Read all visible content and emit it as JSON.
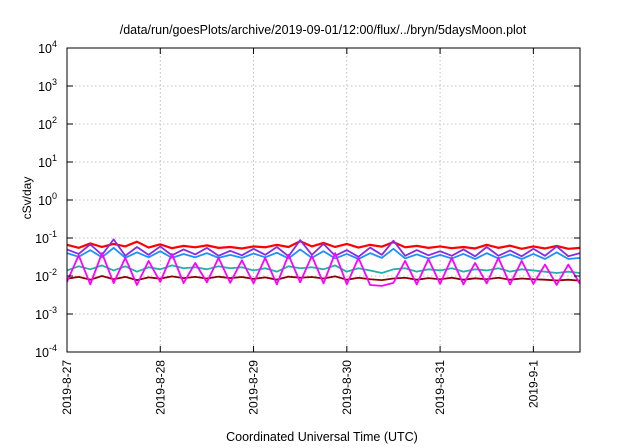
{
  "chart_data": {
    "type": "line",
    "title": "/data/run/goesPlots/archive/2019-09-01/12:00/flux/../bryn/5daysMoon.plot",
    "xlabel": "Coordinated Universal Time (UTC)",
    "ylabel": "cSv/day",
    "yscale": "log",
    "ylim": [
      0.0001,
      10000
    ],
    "xlim": [
      "2019-08-27T00:00",
      "2019-09-01T12:00"
    ],
    "grid": true,
    "legend": "none",
    "x_ticks": [
      {
        "label": "2019-8-27",
        "date": "2019-08-27T00:00"
      },
      {
        "label": "2019-8-28",
        "date": "2019-08-28T00:00"
      },
      {
        "label": "2019-8-29",
        "date": "2019-08-29T00:00"
      },
      {
        "label": "2019-8-30",
        "date": "2019-08-30T00:00"
      },
      {
        "label": "2019-8-31",
        "date": "2019-08-31T00:00"
      },
      {
        "label": "2019-9-1",
        "date": "2019-09-01T00:00"
      }
    ],
    "y_ticks": [
      {
        "base": "10",
        "exp": "-4",
        "value": 0.0001
      },
      {
        "base": "10",
        "exp": "-3",
        "value": 0.001
      },
      {
        "base": "10",
        "exp": "-2",
        "value": 0.01
      },
      {
        "base": "10",
        "exp": "-1",
        "value": 0.1
      },
      {
        "base": "10",
        "exp": "0",
        "value": 1
      },
      {
        "base": "10",
        "exp": "1",
        "value": 10
      },
      {
        "base": "10",
        "exp": "2",
        "value": 100
      },
      {
        "base": "10",
        "exp": "3",
        "value": 1000
      },
      {
        "base": "10",
        "exp": "4",
        "value": 10000
      }
    ],
    "series": [
      {
        "color": "#ff0000",
        "x": [
          "2019-08-27T00:00",
          "2019-08-27T03:00",
          "2019-08-27T06:00",
          "2019-08-27T09:00",
          "2019-08-27T12:00",
          "2019-08-27T15:00",
          "2019-08-27T18:00",
          "2019-08-27T21:00",
          "2019-08-28T00:00",
          "2019-08-28T03:00",
          "2019-08-28T06:00",
          "2019-08-28T09:00",
          "2019-08-28T12:00",
          "2019-08-28T15:00",
          "2019-08-28T18:00",
          "2019-08-28T21:00",
          "2019-08-29T00:00",
          "2019-08-29T03:00",
          "2019-08-29T06:00",
          "2019-08-29T09:00",
          "2019-08-29T12:00",
          "2019-08-29T15:00",
          "2019-08-29T18:00",
          "2019-08-29T21:00",
          "2019-08-30T00:00",
          "2019-08-30T03:00",
          "2019-08-30T06:00",
          "2019-08-30T09:00",
          "2019-08-30T12:00",
          "2019-08-30T15:00",
          "2019-08-30T18:00",
          "2019-08-30T21:00",
          "2019-08-31T00:00",
          "2019-08-31T03:00",
          "2019-08-31T06:00",
          "2019-08-31T09:00",
          "2019-08-31T12:00",
          "2019-08-31T15:00",
          "2019-08-31T18:00",
          "2019-08-31T21:00",
          "2019-09-01T00:00",
          "2019-09-01T03:00",
          "2019-09-01T06:00",
          "2019-09-01T09:00",
          "2019-09-01T12:00"
        ],
        "values": [
          0.066,
          0.055,
          0.072,
          0.058,
          0.07,
          0.06,
          0.08,
          0.056,
          0.068,
          0.054,
          0.062,
          0.057,
          0.064,
          0.055,
          0.058,
          0.053,
          0.06,
          0.057,
          0.066,
          0.058,
          0.082,
          0.06,
          0.074,
          0.058,
          0.07,
          0.056,
          0.066,
          0.059,
          0.078,
          0.057,
          0.062,
          0.055,
          0.06,
          0.054,
          0.058,
          0.053,
          0.066,
          0.055,
          0.063,
          0.052,
          0.06,
          0.053,
          0.062,
          0.052,
          0.055
        ]
      },
      {
        "color": "#8a2be2",
        "x": [
          "2019-08-27T00:00",
          "2019-08-27T03:00",
          "2019-08-27T06:00",
          "2019-08-27T09:00",
          "2019-08-27T12:00",
          "2019-08-27T15:00",
          "2019-08-27T18:00",
          "2019-08-27T21:00",
          "2019-08-28T00:00",
          "2019-08-28T03:00",
          "2019-08-28T06:00",
          "2019-08-28T09:00",
          "2019-08-28T12:00",
          "2019-08-28T15:00",
          "2019-08-28T18:00",
          "2019-08-28T21:00",
          "2019-08-29T00:00",
          "2019-08-29T03:00",
          "2019-08-29T06:00",
          "2019-08-29T09:00",
          "2019-08-29T12:00",
          "2019-08-29T15:00",
          "2019-08-29T18:00",
          "2019-08-29T21:00",
          "2019-08-30T00:00",
          "2019-08-30T03:00",
          "2019-08-30T06:00",
          "2019-08-30T09:00",
          "2019-08-30T12:00",
          "2019-08-30T15:00",
          "2019-08-30T18:00",
          "2019-08-30T21:00",
          "2019-08-31T00:00",
          "2019-08-31T03:00",
          "2019-08-31T06:00",
          "2019-08-31T09:00",
          "2019-08-31T12:00",
          "2019-08-31T15:00",
          "2019-08-31T18:00",
          "2019-08-31T21:00",
          "2019-09-01T00:00",
          "2019-09-01T03:00",
          "2019-09-01T06:00",
          "2019-09-01T09:00",
          "2019-09-01T12:00"
        ],
        "values": [
          0.05,
          0.038,
          0.068,
          0.036,
          0.092,
          0.034,
          0.058,
          0.036,
          0.06,
          0.035,
          0.05,
          0.037,
          0.055,
          0.034,
          0.046,
          0.035,
          0.052,
          0.036,
          0.058,
          0.033,
          0.088,
          0.036,
          0.07,
          0.034,
          0.048,
          0.032,
          0.056,
          0.036,
          0.085,
          0.034,
          0.048,
          0.035,
          0.045,
          0.034,
          0.05,
          0.033,
          0.058,
          0.034,
          0.047,
          0.033,
          0.052,
          0.034,
          0.06,
          0.033,
          0.04
        ]
      },
      {
        "color": "#1e90ff",
        "x": [
          "2019-08-27T00:00",
          "2019-08-27T03:00",
          "2019-08-27T06:00",
          "2019-08-27T09:00",
          "2019-08-27T12:00",
          "2019-08-27T15:00",
          "2019-08-27T18:00",
          "2019-08-27T21:00",
          "2019-08-28T00:00",
          "2019-08-28T03:00",
          "2019-08-28T06:00",
          "2019-08-28T09:00",
          "2019-08-28T12:00",
          "2019-08-28T15:00",
          "2019-08-28T18:00",
          "2019-08-28T21:00",
          "2019-08-29T00:00",
          "2019-08-29T03:00",
          "2019-08-29T06:00",
          "2019-08-29T09:00",
          "2019-08-29T12:00",
          "2019-08-29T15:00",
          "2019-08-29T18:00",
          "2019-08-29T21:00",
          "2019-08-30T00:00",
          "2019-08-30T03:00",
          "2019-08-30T06:00",
          "2019-08-30T09:00",
          "2019-08-30T12:00",
          "2019-08-30T15:00",
          "2019-08-30T18:00",
          "2019-08-30T21:00",
          "2019-08-31T00:00",
          "2019-08-31T03:00",
          "2019-08-31T06:00",
          "2019-08-31T09:00",
          "2019-08-31T12:00",
          "2019-08-31T15:00",
          "2019-08-31T18:00",
          "2019-08-31T21:00",
          "2019-09-01T00:00",
          "2019-09-01T03:00",
          "2019-09-01T06:00",
          "2019-09-01T09:00",
          "2019-09-01T12:00"
        ],
        "values": [
          0.04,
          0.032,
          0.048,
          0.031,
          0.055,
          0.03,
          0.042,
          0.031,
          0.045,
          0.03,
          0.038,
          0.031,
          0.04,
          0.03,
          0.036,
          0.03,
          0.039,
          0.031,
          0.041,
          0.029,
          0.05,
          0.03,
          0.045,
          0.029,
          0.038,
          0.028,
          0.04,
          0.03,
          0.052,
          0.029,
          0.037,
          0.029,
          0.036,
          0.029,
          0.038,
          0.028,
          0.04,
          0.029,
          0.037,
          0.028,
          0.038,
          0.028,
          0.042,
          0.028,
          0.03
        ]
      },
      {
        "color": "#20b2aa",
        "x": [
          "2019-08-27T00:00",
          "2019-08-27T03:00",
          "2019-08-27T06:00",
          "2019-08-27T09:00",
          "2019-08-27T12:00",
          "2019-08-27T15:00",
          "2019-08-27T18:00",
          "2019-08-27T21:00",
          "2019-08-28T00:00",
          "2019-08-28T03:00",
          "2019-08-28T06:00",
          "2019-08-28T09:00",
          "2019-08-28T12:00",
          "2019-08-28T15:00",
          "2019-08-28T18:00",
          "2019-08-28T21:00",
          "2019-08-29T00:00",
          "2019-08-29T03:00",
          "2019-08-29T06:00",
          "2019-08-29T09:00",
          "2019-08-29T12:00",
          "2019-08-29T15:00",
          "2019-08-29T18:00",
          "2019-08-29T21:00",
          "2019-08-30T00:00",
          "2019-08-30T03:00",
          "2019-08-30T06:00",
          "2019-08-30T09:00",
          "2019-08-30T12:00",
          "2019-08-30T15:00",
          "2019-08-30T18:00",
          "2019-08-30T21:00",
          "2019-08-31T00:00",
          "2019-08-31T03:00",
          "2019-08-31T06:00",
          "2019-08-31T09:00",
          "2019-08-31T12:00",
          "2019-08-31T15:00",
          "2019-08-31T18:00",
          "2019-08-31T21:00",
          "2019-09-01T00:00",
          "2019-09-01T03:00",
          "2019-09-01T06:00",
          "2019-09-01T09:00",
          "2019-09-01T12:00"
        ],
        "values": [
          0.014,
          0.018,
          0.015,
          0.019,
          0.014,
          0.018,
          0.013,
          0.017,
          0.015,
          0.019,
          0.016,
          0.017,
          0.015,
          0.018,
          0.016,
          0.017,
          0.014,
          0.016,
          0.013,
          0.018,
          0.016,
          0.017,
          0.015,
          0.019,
          0.013,
          0.016,
          0.014,
          0.012,
          0.015,
          0.016,
          0.013,
          0.015,
          0.014,
          0.016,
          0.013,
          0.015,
          0.014,
          0.016,
          0.013,
          0.015,
          0.014,
          0.013,
          0.012,
          0.013,
          0.012
        ]
      },
      {
        "color": "#8b0000",
        "x": [
          "2019-08-27T00:00",
          "2019-08-27T03:00",
          "2019-08-27T06:00",
          "2019-08-27T09:00",
          "2019-08-27T12:00",
          "2019-08-27T15:00",
          "2019-08-27T18:00",
          "2019-08-27T21:00",
          "2019-08-28T00:00",
          "2019-08-28T03:00",
          "2019-08-28T06:00",
          "2019-08-28T09:00",
          "2019-08-28T12:00",
          "2019-08-28T15:00",
          "2019-08-28T18:00",
          "2019-08-28T21:00",
          "2019-08-29T00:00",
          "2019-08-29T03:00",
          "2019-08-29T06:00",
          "2019-08-29T09:00",
          "2019-08-29T12:00",
          "2019-08-29T15:00",
          "2019-08-29T18:00",
          "2019-08-29T21:00",
          "2019-08-30T00:00",
          "2019-08-30T03:00",
          "2019-08-30T06:00",
          "2019-08-30T09:00",
          "2019-08-30T12:00",
          "2019-08-30T15:00",
          "2019-08-30T18:00",
          "2019-08-30T21:00",
          "2019-08-31T00:00",
          "2019-08-31T03:00",
          "2019-08-31T06:00",
          "2019-08-31T09:00",
          "2019-08-31T12:00",
          "2019-08-31T15:00",
          "2019-08-31T18:00",
          "2019-08-31T21:00",
          "2019-09-01T00:00",
          "2019-09-01T03:00",
          "2019-09-01T06:00",
          "2019-09-01T09:00",
          "2019-09-01T12:00"
        ],
        "values": [
          0.0085,
          0.0095,
          0.008,
          0.01,
          0.0082,
          0.0095,
          0.0078,
          0.0092,
          0.0085,
          0.0098,
          0.0088,
          0.0095,
          0.0086,
          0.0096,
          0.0088,
          0.0094,
          0.0084,
          0.0092,
          0.008,
          0.0096,
          0.009,
          0.0094,
          0.0086,
          0.0098,
          0.008,
          0.009,
          0.0082,
          0.0078,
          0.0086,
          0.009,
          0.008,
          0.0088,
          0.0082,
          0.009,
          0.008,
          0.0087,
          0.0082,
          0.009,
          0.008,
          0.0086,
          0.0082,
          0.008,
          0.0076,
          0.008,
          0.0075
        ]
      },
      {
        "color": "#ff00ff",
        "x": [
          "2019-08-27T00:00",
          "2019-08-27T03:00",
          "2019-08-27T06:00",
          "2019-08-27T09:00",
          "2019-08-27T12:00",
          "2019-08-27T15:00",
          "2019-08-27T18:00",
          "2019-08-27T21:00",
          "2019-08-28T00:00",
          "2019-08-28T03:00",
          "2019-08-28T06:00",
          "2019-08-28T09:00",
          "2019-08-28T12:00",
          "2019-08-28T15:00",
          "2019-08-28T18:00",
          "2019-08-28T21:00",
          "2019-08-29T00:00",
          "2019-08-29T03:00",
          "2019-08-29T06:00",
          "2019-08-29T09:00",
          "2019-08-29T12:00",
          "2019-08-29T15:00",
          "2019-08-29T18:00",
          "2019-08-29T21:00",
          "2019-08-30T00:00",
          "2019-08-30T03:00",
          "2019-08-30T06:00",
          "2019-08-30T09:00",
          "2019-08-30T12:00",
          "2019-08-30T15:00",
          "2019-08-30T18:00",
          "2019-08-30T21:00",
          "2019-08-31T00:00",
          "2019-08-31T03:00",
          "2019-08-31T06:00",
          "2019-08-31T09:00",
          "2019-08-31T12:00",
          "2019-08-31T15:00",
          "2019-08-31T18:00",
          "2019-08-31T21:00",
          "2019-09-01T00:00",
          "2019-09-01T03:00",
          "2019-09-01T06:00",
          "2019-09-01T09:00",
          "2019-09-01T12:00"
        ],
        "values": [
          0.007,
          0.035,
          0.006,
          0.04,
          0.0065,
          0.03,
          0.0058,
          0.025,
          0.007,
          0.038,
          0.0065,
          0.022,
          0.0068,
          0.03,
          0.0066,
          0.026,
          0.0064,
          0.03,
          0.006,
          0.036,
          0.0068,
          0.034,
          0.0064,
          0.04,
          0.006,
          0.03,
          0.0058,
          0.0055,
          0.0066,
          0.025,
          0.006,
          0.028,
          0.0062,
          0.03,
          0.006,
          0.022,
          0.0064,
          0.03,
          0.006,
          0.025,
          0.0062,
          0.02,
          0.0058,
          0.02,
          0.0062
        ]
      }
    ]
  }
}
